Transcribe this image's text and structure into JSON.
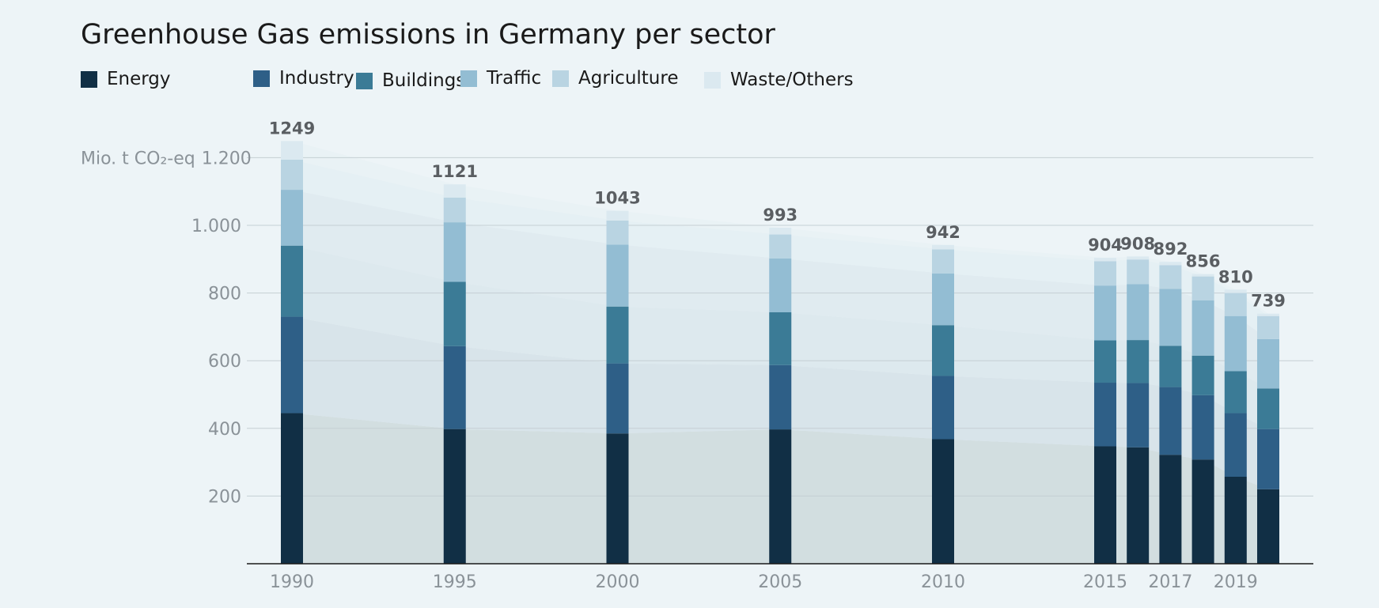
{
  "chart_data": {
    "type": "bar",
    "stacked": true,
    "title": "Greenhouse Gas emissions in Germany per sector",
    "ylabel": "Mio. t CO₂-eq",
    "ylim": [
      0,
      1250
    ],
    "yticks": [
      200,
      400,
      600,
      800,
      1000,
      1200
    ],
    "ytick_labels": [
      "200",
      "400",
      "600",
      "800",
      "1.000",
      "1.200"
    ],
    "grid": true,
    "legend_position": "top-left",
    "x": [
      1990,
      1995,
      2000,
      2005,
      2010,
      2015,
      2016,
      2017,
      2018,
      2019,
      2020
    ],
    "xtick_values": [
      1990,
      1995,
      2000,
      2005,
      2010,
      2015,
      2017,
      2019
    ],
    "xtick_labels": [
      "1990",
      "1995",
      "2000",
      "2005",
      "2010",
      "2015",
      "2017",
      "2019"
    ],
    "totals": [
      1249,
      1121,
      1043,
      993,
      942,
      904,
      908,
      892,
      856,
      810,
      739
    ],
    "series": [
      {
        "name": "Energy",
        "color": "#112f45",
        "values": [
          445,
          398,
          385,
          397,
          368,
          347,
          344,
          322,
          308,
          257,
          220
        ]
      },
      {
        "name": "Industry",
        "color": "#2e5f87",
        "values": [
          285,
          245,
          207,
          190,
          187,
          188,
          190,
          200,
          190,
          188,
          178
        ]
      },
      {
        "name": "Buildings",
        "color": "#3b7b96",
        "values": [
          210,
          190,
          168,
          156,
          150,
          125,
          127,
          122,
          117,
          124,
          120
        ]
      },
      {
        "name": "Traffic",
        "color": "#93bdd3",
        "values": [
          165,
          176,
          183,
          159,
          153,
          162,
          165,
          168,
          163,
          163,
          146
        ]
      },
      {
        "name": "Agriculture",
        "color": "#b9d4e2",
        "values": [
          89,
          73,
          71,
          71,
          71,
          72,
          73,
          70,
          71,
          68,
          68
        ]
      },
      {
        "name": "Waste/Others",
        "color": "#dbe9f0",
        "values": [
          55,
          39,
          29,
          20,
          13,
          10,
          9,
          10,
          7,
          10,
          7
        ]
      }
    ]
  }
}
